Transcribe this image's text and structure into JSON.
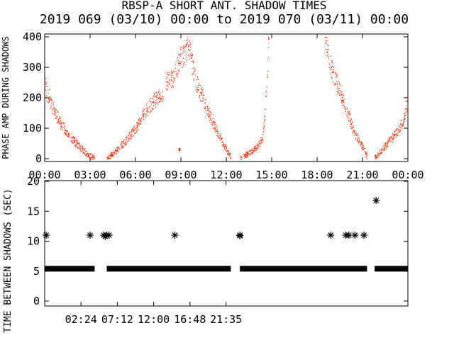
{
  "chart_data": [
    {
      "type": "scatter",
      "title": "RBSP-A SHORT ANT. SHADOW TIMES",
      "subtitle": "2019 069 (03/10) 00:00 to 2019 070 (03/11) 00:00",
      "xlabel": "",
      "ylabel": "PHASE AMP DURING SHADOWS",
      "xlim": [
        0,
        24
      ],
      "ylim": [
        0,
        400
      ],
      "yticks": [
        "0",
        "100",
        "200",
        "300",
        "400"
      ],
      "xticks": [
        "00:00",
        "03:00",
        "06:00",
        "09:00",
        "12:00",
        "15:00",
        "18:00",
        "21:00",
        "00:00"
      ],
      "grid": false,
      "series": [
        {
          "color": "#ff2a00",
          "segments": [
            {
              "x": [
                0.0,
                0.5,
                1.0,
                1.5,
                2.0,
                2.5,
                2.9,
                3.3
              ],
              "y": [
                240,
                170,
                120,
                85,
                55,
                30,
                12,
                2
              ]
            },
            {
              "x": [
                4.1,
                5.0,
                6.0,
                6.7,
                7.4,
                7.8
              ],
              "y": [
                2,
                40,
                100,
                160,
                200,
                210
              ]
            },
            {
              "x": [
                8.0,
                8.5,
                9.0,
                9.5,
                10.0,
                10.5,
                11.0,
                11.5,
                12.0,
                12.3
              ],
              "y": [
                250,
                270,
                330,
                370,
                250,
                190,
                130,
                80,
                30,
                5
              ]
            },
            {
              "x": [
                12.9,
                13.5,
                14.0,
                14.4,
                14.6,
                14.8
              ],
              "y": [
                2,
                20,
                40,
                70,
                200,
                400
              ]
            },
            {
              "x": [
                18.5,
                19.0,
                19.5,
                20.0,
                20.5,
                21.0,
                21.3
              ],
              "y": [
                400,
                280,
                220,
                150,
                80,
                40,
                5
              ]
            },
            {
              "x": [
                21.8,
                22.3,
                22.8,
                23.3,
                23.7,
                24.0
              ],
              "y": [
                5,
                30,
                60,
                90,
                130,
                200
              ]
            }
          ],
          "isolated": [
            {
              "x": 8.9,
              "y": 30
            }
          ]
        }
      ]
    },
    {
      "type": "scatter",
      "title": "",
      "xlabel": "",
      "ylabel": "TIME BETWEEN SHADOWS (SEC)",
      "xlim": [
        0,
        24
      ],
      "ylim": [
        0,
        20
      ],
      "yticks": [
        "0",
        "5",
        "10",
        "15",
        "20"
      ],
      "xticks": [
        "02:24",
        "07:12",
        "12:00",
        "16:48",
        "21:35"
      ],
      "grid": false,
      "marker": "asterisk",
      "series": [
        {
          "name": "",
          "baseline_y": 5.4,
          "baseline_ranges": [
            [
              0.0,
              3.3
            ],
            [
              4.1,
              12.3
            ],
            [
              12.9,
              21.3
            ],
            [
              21.8,
              24.0
            ]
          ],
          "points": [
            {
              "x": 0.1,
              "y": 11.0
            },
            {
              "x": 3.0,
              "y": 11.0
            },
            {
              "x": 3.9,
              "y": 11.0
            },
            {
              "x": 4.1,
              "y": 11.0
            },
            {
              "x": 4.25,
              "y": 11.0
            },
            {
              "x": 4.0,
              "y": 10.8
            },
            {
              "x": 8.6,
              "y": 11.0
            },
            {
              "x": 12.9,
              "y": 11.0
            },
            {
              "x": 12.9,
              "y": 10.9
            },
            {
              "x": 18.9,
              "y": 11.0
            },
            {
              "x": 19.9,
              "y": 11.0
            },
            {
              "x": 20.1,
              "y": 11.0
            },
            {
              "x": 20.5,
              "y": 11.0
            },
            {
              "x": 21.1,
              "y": 11.0
            },
            {
              "x": 21.9,
              "y": 16.8
            }
          ]
        }
      ]
    }
  ]
}
